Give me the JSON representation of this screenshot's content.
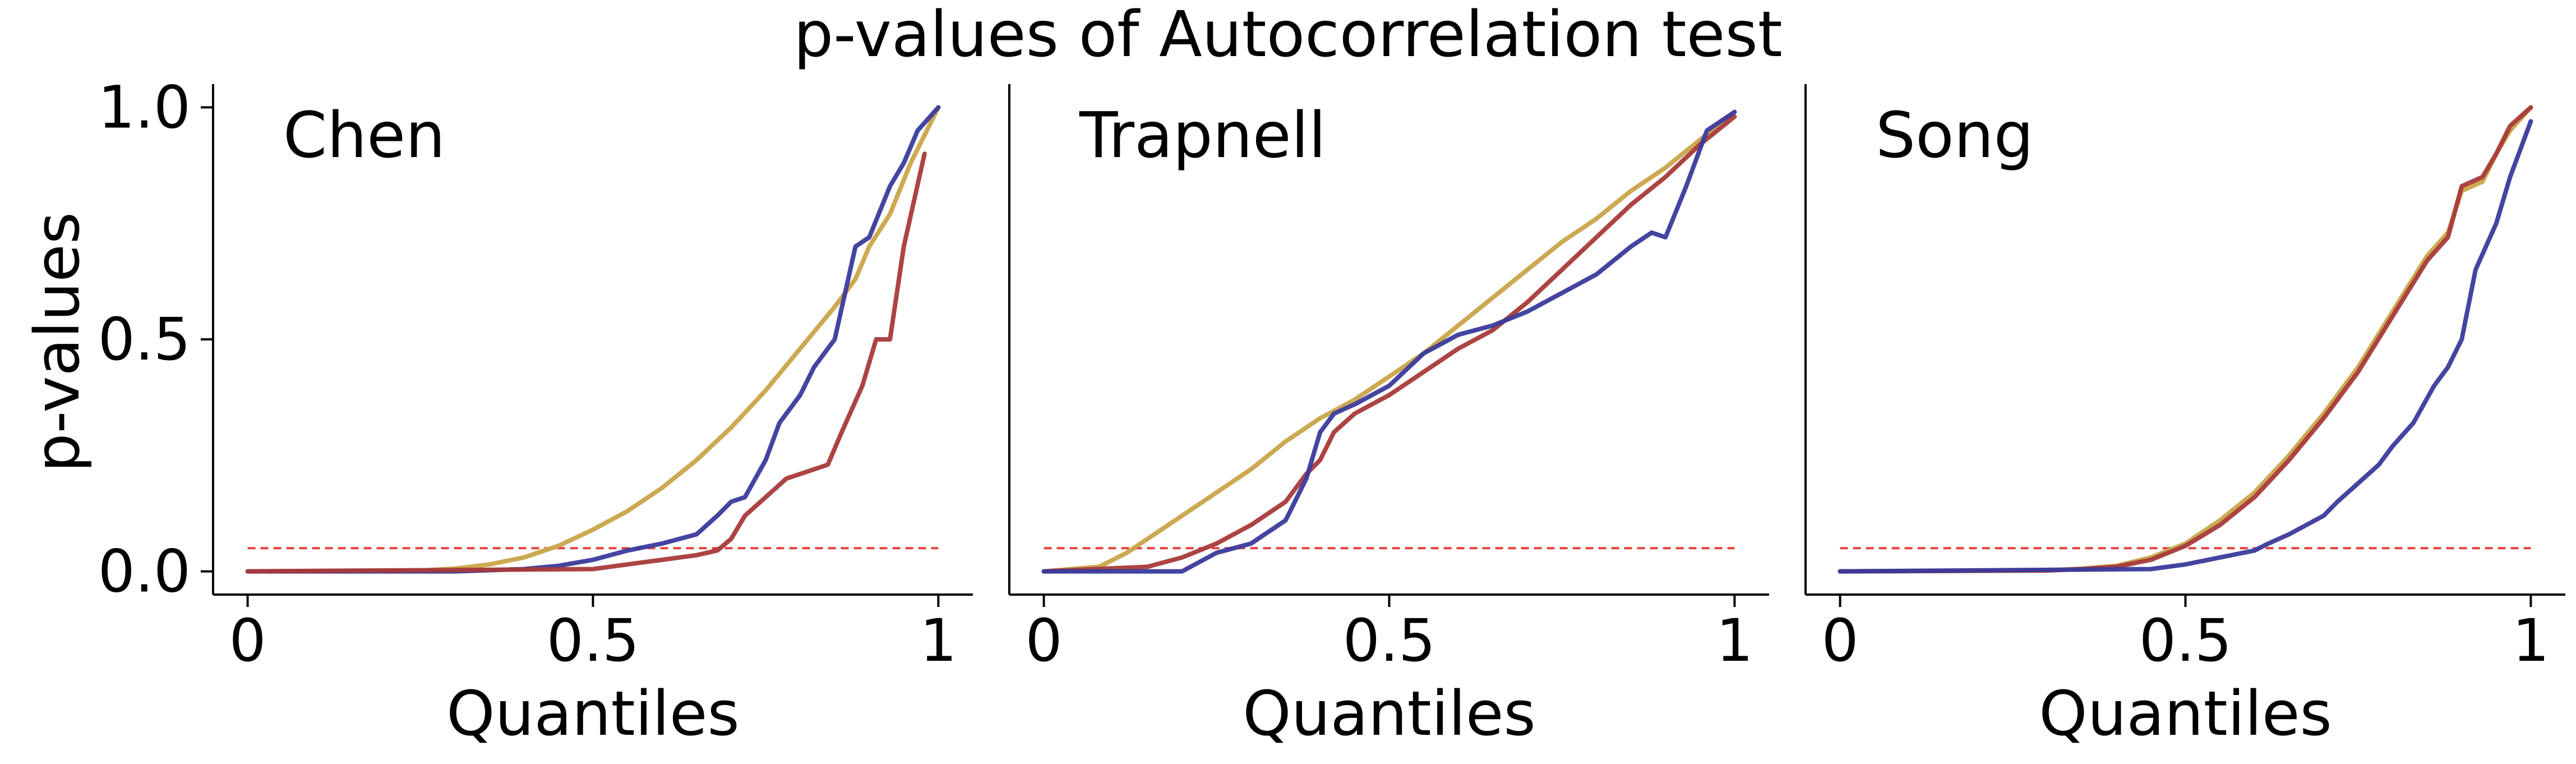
{
  "figure": {
    "title": "p-values of Autocorrelation test",
    "ylabel": "p-values",
    "xlabel": "Quantiles"
  },
  "chart_data": [
    {
      "type": "line",
      "panel_label": "Chen",
      "xlabel": "Quantiles",
      "ylabel": "p-values",
      "xlim": [
        -0.05,
        1.05
      ],
      "ylim": [
        -0.05,
        1.05
      ],
      "xticks": [
        {
          "value": 0,
          "label": "0"
        },
        {
          "value": 0.5,
          "label": "0.5"
        },
        {
          "value": 1,
          "label": "1"
        }
      ],
      "yticks": [
        {
          "value": 0,
          "label": "0.0"
        },
        {
          "value": 0.5,
          "label": "0.5"
        },
        {
          "value": 1,
          "label": "1.0"
        }
      ],
      "grid": false,
      "reference_line": {
        "y": 0.05,
        "x": [
          0,
          1
        ],
        "color": "#e8413a",
        "style": "dashed"
      },
      "series": [
        {
          "color": "#c9a449",
          "x": [
            0,
            0.25,
            0.3,
            0.35,
            0.4,
            0.45,
            0.5,
            0.55,
            0.6,
            0.65,
            0.7,
            0.75,
            0.8,
            0.85,
            0.88,
            0.9,
            0.93,
            0.96,
            1.0
          ],
          "y": [
            0,
            0.002,
            0.006,
            0.015,
            0.03,
            0.055,
            0.09,
            0.13,
            0.18,
            0.24,
            0.31,
            0.39,
            0.48,
            0.57,
            0.63,
            0.7,
            0.77,
            0.88,
            1.0
          ]
        },
        {
          "color": "#3a3a9c",
          "x": [
            0,
            0.3,
            0.4,
            0.45,
            0.5,
            0.55,
            0.6,
            0.65,
            0.68,
            0.7,
            0.72,
            0.75,
            0.77,
            0.8,
            0.82,
            0.85,
            0.88,
            0.9,
            0.93,
            0.95,
            0.97,
            1.0
          ],
          "y": [
            0,
            0.0,
            0.005,
            0.012,
            0.025,
            0.045,
            0.06,
            0.08,
            0.12,
            0.15,
            0.16,
            0.24,
            0.32,
            0.38,
            0.44,
            0.5,
            0.7,
            0.72,
            0.83,
            0.88,
            0.95,
            1.0
          ]
        },
        {
          "color": "#a83a3a",
          "x": [
            0,
            0.5,
            0.55,
            0.6,
            0.65,
            0.68,
            0.7,
            0.72,
            0.75,
            0.78,
            0.8,
            0.84,
            0.86,
            0.89,
            0.91,
            0.93,
            0.95,
            0.98
          ],
          "y": [
            0,
            0.005,
            0.015,
            0.025,
            0.035,
            0.045,
            0.07,
            0.12,
            0.16,
            0.2,
            0.21,
            0.23,
            0.3,
            0.4,
            0.5,
            0.5,
            0.7,
            0.9
          ]
        }
      ]
    },
    {
      "type": "line",
      "panel_label": "Trapnell",
      "xlabel": "Quantiles",
      "ylabel": "",
      "xlim": [
        -0.05,
        1.05
      ],
      "ylim": [
        -0.05,
        1.05
      ],
      "xticks": [
        {
          "value": 0,
          "label": "0"
        },
        {
          "value": 0.5,
          "label": "0.5"
        },
        {
          "value": 1,
          "label": "1"
        }
      ],
      "yticks": [],
      "grid": false,
      "reference_line": {
        "y": 0.05,
        "x": [
          0,
          1
        ],
        "color": "#e8413a",
        "style": "dashed"
      },
      "series": [
        {
          "color": "#c9a449",
          "x": [
            0,
            0.08,
            0.12,
            0.16,
            0.2,
            0.25,
            0.3,
            0.35,
            0.4,
            0.45,
            0.5,
            0.55,
            0.6,
            0.65,
            0.7,
            0.75,
            0.8,
            0.85,
            0.9,
            0.95,
            1.0
          ],
          "y": [
            0,
            0.01,
            0.04,
            0.08,
            0.12,
            0.17,
            0.22,
            0.28,
            0.33,
            0.37,
            0.42,
            0.47,
            0.53,
            0.59,
            0.65,
            0.71,
            0.76,
            0.82,
            0.87,
            0.93,
            0.99
          ]
        },
        {
          "color": "#a83a3a",
          "x": [
            0,
            0.15,
            0.2,
            0.25,
            0.3,
            0.35,
            0.38,
            0.4,
            0.42,
            0.45,
            0.5,
            0.55,
            0.6,
            0.65,
            0.7,
            0.75,
            0.8,
            0.85,
            0.9,
            0.95,
            1.0
          ],
          "y": [
            0,
            0.01,
            0.03,
            0.06,
            0.1,
            0.15,
            0.21,
            0.24,
            0.3,
            0.34,
            0.38,
            0.43,
            0.48,
            0.52,
            0.58,
            0.65,
            0.72,
            0.79,
            0.85,
            0.92,
            0.98
          ]
        },
        {
          "color": "#3a3a9c",
          "x": [
            0,
            0.2,
            0.25,
            0.3,
            0.35,
            0.38,
            0.4,
            0.42,
            0.45,
            0.5,
            0.55,
            0.6,
            0.65,
            0.7,
            0.75,
            0.8,
            0.85,
            0.88,
            0.9,
            0.93,
            0.96,
            1.0
          ],
          "y": [
            0,
            0.0,
            0.04,
            0.06,
            0.11,
            0.2,
            0.3,
            0.34,
            0.36,
            0.4,
            0.47,
            0.51,
            0.53,
            0.56,
            0.6,
            0.64,
            0.7,
            0.73,
            0.72,
            0.83,
            0.95,
            0.99
          ]
        }
      ]
    },
    {
      "type": "line",
      "panel_label": "Song",
      "xlabel": "Quantiles",
      "ylabel": "",
      "xlim": [
        -0.05,
        1.05
      ],
      "ylim": [
        -0.05,
        1.05
      ],
      "xticks": [
        {
          "value": 0,
          "label": "0"
        },
        {
          "value": 0.5,
          "label": "0.5"
        },
        {
          "value": 1,
          "label": "1"
        }
      ],
      "yticks": [],
      "grid": false,
      "reference_line": {
        "y": 0.05,
        "x": [
          0,
          1
        ],
        "color": "#e8413a",
        "style": "dashed"
      },
      "series": [
        {
          "color": "#c9a449",
          "x": [
            0,
            0.3,
            0.35,
            0.4,
            0.45,
            0.5,
            0.55,
            0.6,
            0.65,
            0.7,
            0.75,
            0.8,
            0.85,
            0.88,
            0.9,
            0.93,
            0.95,
            0.97,
            1.0
          ],
          "y": [
            0,
            0.002,
            0.006,
            0.012,
            0.03,
            0.06,
            0.11,
            0.17,
            0.25,
            0.34,
            0.44,
            0.56,
            0.68,
            0.73,
            0.82,
            0.84,
            0.9,
            0.95,
            1.0
          ]
        },
        {
          "color": "#a83a3a",
          "x": [
            0,
            0.3,
            0.35,
            0.4,
            0.45,
            0.5,
            0.55,
            0.6,
            0.65,
            0.7,
            0.75,
            0.8,
            0.85,
            0.88,
            0.9,
            0.93,
            0.95,
            0.97,
            1.0
          ],
          "y": [
            0,
            0.002,
            0.005,
            0.01,
            0.025,
            0.055,
            0.1,
            0.16,
            0.24,
            0.33,
            0.43,
            0.55,
            0.67,
            0.72,
            0.83,
            0.85,
            0.9,
            0.96,
            1.0
          ]
        },
        {
          "color": "#3a3a9c",
          "x": [
            0,
            0.45,
            0.5,
            0.55,
            0.6,
            0.62,
            0.65,
            0.7,
            0.72,
            0.75,
            0.78,
            0.8,
            0.83,
            0.86,
            0.88,
            0.9,
            0.92,
            0.95,
            0.97,
            1.0
          ],
          "y": [
            0,
            0.005,
            0.015,
            0.03,
            0.045,
            0.06,
            0.08,
            0.12,
            0.15,
            0.19,
            0.23,
            0.27,
            0.32,
            0.4,
            0.44,
            0.5,
            0.65,
            0.75,
            0.85,
            0.97
          ]
        }
      ]
    }
  ]
}
